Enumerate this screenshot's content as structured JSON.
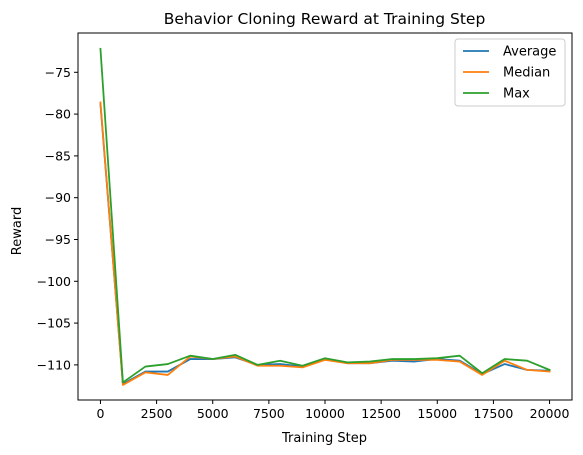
{
  "chart_data": {
    "type": "line",
    "title": "Behavior Cloning Reward at Training Step",
    "xlabel": "Training Step",
    "ylabel": "Reward",
    "x": [
      0,
      1000,
      2000,
      3000,
      4000,
      5000,
      6000,
      7000,
      8000,
      9000,
      10000,
      11000,
      12000,
      13000,
      14000,
      15000,
      16000,
      17000,
      18000,
      19000,
      20000
    ],
    "series": [
      {
        "name": "Average",
        "color": "#1f77b4",
        "values": [
          -78.8,
          -112.3,
          -110.8,
          -110.8,
          -109.3,
          -109.3,
          -109.1,
          -110.0,
          -109.9,
          -110.2,
          -109.3,
          -109.8,
          -109.8,
          -109.5,
          -109.6,
          -109.3,
          -109.5,
          -111.1,
          -109.9,
          -110.6,
          -110.7
        ]
      },
      {
        "name": "Median",
        "color": "#ff7f0e",
        "values": [
          -78.6,
          -112.4,
          -110.9,
          -111.2,
          -109.0,
          -109.3,
          -109.0,
          -110.1,
          -110.1,
          -110.3,
          -109.4,
          -109.8,
          -109.8,
          -109.4,
          -109.4,
          -109.4,
          -109.6,
          -111.2,
          -109.5,
          -110.6,
          -110.8
        ]
      },
      {
        "name": "Max",
        "color": "#2ca02c",
        "values": [
          -72.2,
          -112.1,
          -110.2,
          -109.9,
          -108.9,
          -109.3,
          -108.8,
          -110.0,
          -109.5,
          -110.1,
          -109.2,
          -109.7,
          -109.6,
          -109.3,
          -109.3,
          -109.2,
          -108.9,
          -111.0,
          -109.3,
          -109.5,
          -110.6
        ]
      }
    ],
    "xlim": [
      -1000,
      21000
    ],
    "ylim": [
      -114.2,
      -70.3
    ],
    "xticks": [
      0,
      2500,
      5000,
      7500,
      10000,
      12500,
      15000,
      17500,
      20000
    ],
    "xtick_labels": [
      "0",
      "2500",
      "5000",
      "7500",
      "10000",
      "12500",
      "15000",
      "17500",
      "20000"
    ],
    "yticks": [
      -75,
      -80,
      -85,
      -90,
      -95,
      -100,
      -105,
      -110
    ],
    "ytick_labels": [
      "−75",
      "−80",
      "−85",
      "−90",
      "−95",
      "−100",
      "−105",
      "−110"
    ],
    "legend_position": "top-right",
    "grid": false
  }
}
